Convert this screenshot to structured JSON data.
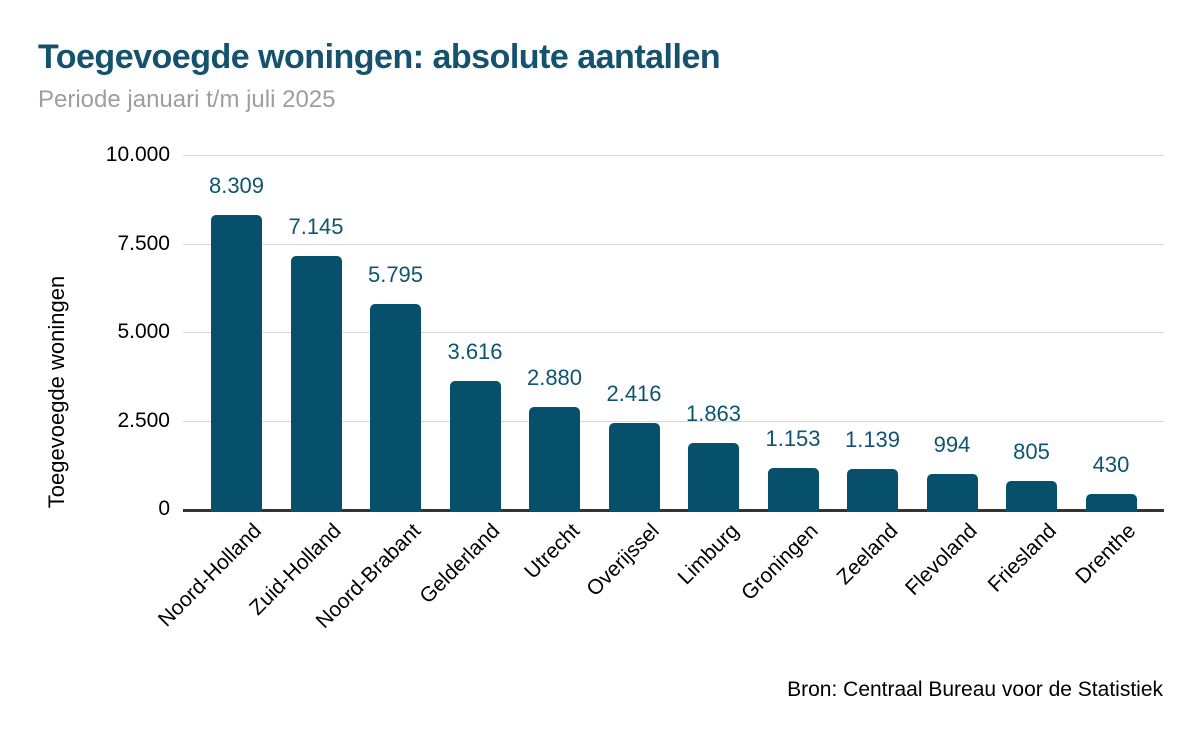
{
  "header": {
    "title": "Toegevoegde woningen: absolute aantallen",
    "subtitle": "Periode januari t/m juli 2025"
  },
  "footer": {
    "source": "Bron: Centraal Bureau voor de Statistiek"
  },
  "colors": {
    "bar": "#07506b",
    "value_label": "#0d5571",
    "title": "#15526e",
    "subtitle": "#9e9e9e",
    "gridline": "#d6d6d6",
    "axis": "#333333",
    "text": "#000000"
  },
  "chart_data": {
    "type": "bar",
    "title": "Toegevoegde woningen: absolute aantallen",
    "subtitle": "Periode januari t/m juli 2025",
    "categories": [
      "Noord-Holland",
      "Zuid-Holland",
      "Noord-Brabant",
      "Gelderland",
      "Utrecht",
      "Overijssel",
      "Limburg",
      "Groningen",
      "Zeeland",
      "Flevoland",
      "Friesland",
      "Drenthe"
    ],
    "values": [
      8309,
      7145,
      5795,
      3616,
      2880,
      2416,
      1863,
      1153,
      1139,
      994,
      805,
      430
    ],
    "value_labels": [
      "8.309",
      "7.145",
      "5.795",
      "3.616",
      "2.880",
      "2.416",
      "1.863",
      "1.153",
      "1.139",
      "994",
      "805",
      "430"
    ],
    "xlabel": "",
    "ylabel": "Toegevoegde woningen",
    "ylim": [
      0,
      10000
    ],
    "yticks": [
      0,
      2500,
      5000,
      7500,
      10000
    ],
    "ytick_labels": [
      "0",
      "2.500",
      "5.000",
      "7.500",
      "10.000"
    ],
    "grid": "horizontal",
    "legend": "none",
    "bar_orientation": "vertical",
    "source": "Bron: Centraal Bureau voor de Statistiek"
  }
}
